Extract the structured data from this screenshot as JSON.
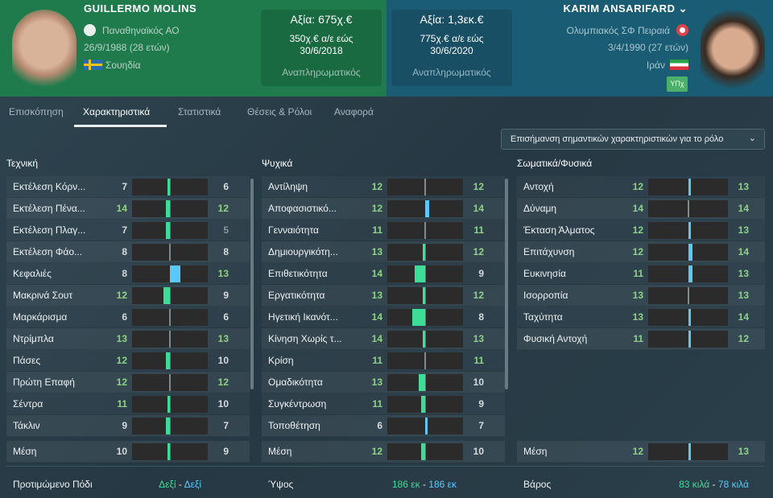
{
  "left_player": {
    "name": "GUILLERMO MOLINS",
    "club": "Παναθηναϊκός ΑΟ",
    "dob": "26/9/1988 (28 ετών)",
    "nation": "Σουηδία",
    "value": "Αξία: 675χ.€",
    "wage": "350χ.€ α/ε εώς",
    "contract_end": "30/6/2018",
    "status": "Αναπληρωματικός"
  },
  "right_player": {
    "name": "KARIM ANSARIFARD",
    "club": "Ολυμπιακός ΣΦ Πειραιά",
    "dob": "3/4/1990 (27 ετών)",
    "nation": "Ιράν",
    "badge": "ΥΠχ",
    "value": "Αξία: 1,3εκ.€",
    "wage": "775χ.€ α/ε εώς",
    "contract_end": "30/6/2020",
    "status": "Αναπληρωματικός"
  },
  "tabs": [
    "Επισκόπηση",
    "Χαρακτηριστικά",
    "Στατιστικά",
    "Θέσεις & Ρόλοι",
    "Αναφορά"
  ],
  "active_tab": "Χαρακτηριστικά",
  "highlight_button": "Επισήμανση σημαντικών χαρακτηριστικών για το ρόλο",
  "colors": {
    "left_better": "#3ddc97",
    "right_better": "#5ac8fa"
  },
  "columns": [
    {
      "title": "Τεχνική",
      "rows": [
        {
          "label": "Εκτέλεση Κόρν...",
          "l": 7,
          "r": 6
        },
        {
          "label": "Εκτέλεση Πένα...",
          "l": 14,
          "r": 12
        },
        {
          "label": "Εκτέλεση Πλαγ...",
          "l": 7,
          "r": 5
        },
        {
          "label": "Εκτέλεση Φάο...",
          "l": 8,
          "r": 8
        },
        {
          "label": "Κεφαλιές",
          "l": 8,
          "r": 13
        },
        {
          "label": "Μακρινά Σουτ",
          "l": 12,
          "r": 9
        },
        {
          "label": "Μαρκάρισμα",
          "l": 6,
          "r": 6
        },
        {
          "label": "Ντρίμπλα",
          "l": 13,
          "r": 13
        },
        {
          "label": "Πάσες",
          "l": 12,
          "r": 10
        },
        {
          "label": "Πρώτη Επαφή",
          "l": 12,
          "r": 12
        },
        {
          "label": "Σέντρα",
          "l": 11,
          "r": 10
        },
        {
          "label": "Τάκλιν",
          "l": 9,
          "r": 7
        }
      ],
      "mean": {
        "label": "Μέση",
        "l": 10,
        "r": 9
      },
      "bottom": {
        "label": "Προτιμώμενο Πόδι",
        "l": "Δεξί",
        "sep": "-",
        "r": "Δεξί"
      }
    },
    {
      "title": "Ψυχικά",
      "rows": [
        {
          "label": "Αντίληψη",
          "l": 12,
          "r": 12
        },
        {
          "label": "Αποφασιστικό...",
          "l": 12,
          "r": 14
        },
        {
          "label": "Γενναιότητα",
          "l": 11,
          "r": 11
        },
        {
          "label": "Δημιουργικότη...",
          "l": 13,
          "r": 12
        },
        {
          "label": "Επιθετικότητα",
          "l": 14,
          "r": 9
        },
        {
          "label": "Εργατικότητα",
          "l": 13,
          "r": 12
        },
        {
          "label": "Ηγετική Ικανότ...",
          "l": 14,
          "r": 8
        },
        {
          "label": "Κίνηση Χωρίς τ...",
          "l": 14,
          "r": 13
        },
        {
          "label": "Κρίση",
          "l": 11,
          "r": 11
        },
        {
          "label": "Ομαδικότητα",
          "l": 13,
          "r": 10
        },
        {
          "label": "Συγκέντρωση",
          "l": 11,
          "r": 9
        },
        {
          "label": "Τοποθέτηση",
          "l": 6,
          "r": 7
        }
      ],
      "mean": {
        "label": "Μέση",
        "l": 12,
        "r": 10
      },
      "bottom": {
        "label": "Ύψος",
        "l": "186 εκ",
        "sep": "-",
        "r": "186 εκ"
      }
    },
    {
      "title": "Σωματικά/Φυσικά",
      "rows": [
        {
          "label": "Αντοχή",
          "l": 12,
          "r": 13
        },
        {
          "label": "Δύναμη",
          "l": 14,
          "r": 14
        },
        {
          "label": "Έκταση Άλματος",
          "l": 12,
          "r": 13
        },
        {
          "label": "Επιτάχυνση",
          "l": 12,
          "r": 14
        },
        {
          "label": "Ευκινησία",
          "l": 11,
          "r": 13
        },
        {
          "label": "Ισορροπία",
          "l": 13,
          "r": 13
        },
        {
          "label": "Ταχύτητα",
          "l": 13,
          "r": 14
        },
        {
          "label": "Φυσική Αντοχή",
          "l": 11,
          "r": 12
        }
      ],
      "mean": {
        "label": "Μέση",
        "l": 12,
        "r": 13
      },
      "bottom": {
        "label": "Βάρος",
        "l": "83 κιλά",
        "sep": "-",
        "r": "78 κιλά"
      }
    }
  ]
}
